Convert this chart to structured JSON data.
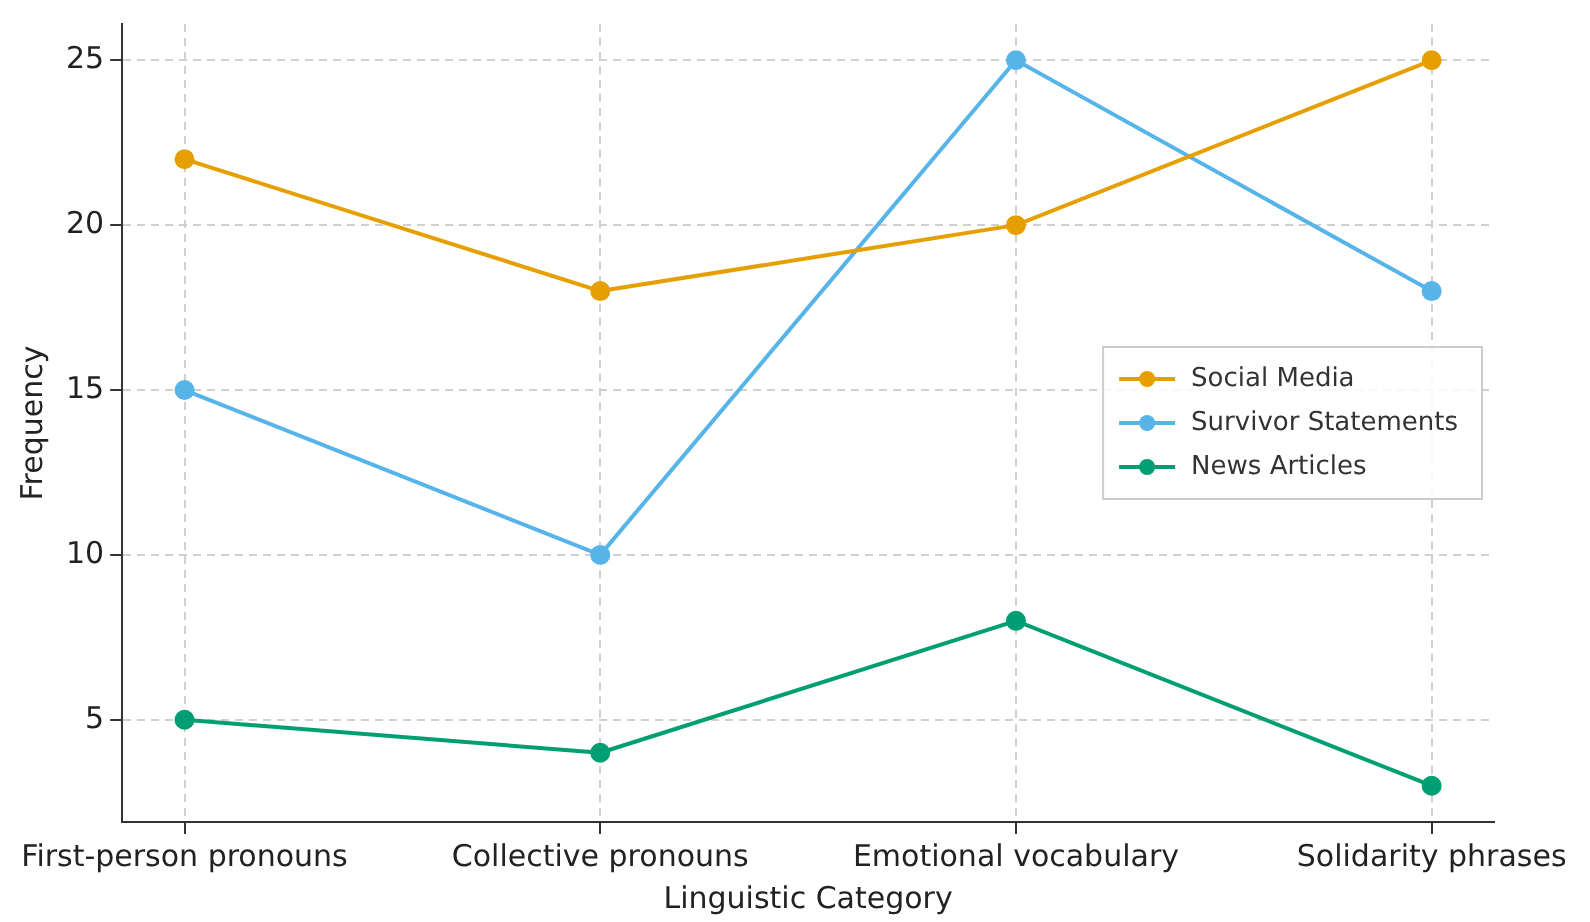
{
  "chart_data": {
    "type": "line",
    "xlabel": "Linguistic Category",
    "ylabel": "Frequency",
    "categories": [
      "First-person pronouns",
      "Collective pronouns",
      "Emotional vocabulary",
      "Solidarity phrases"
    ],
    "series": [
      {
        "name": "Social Media",
        "color": "#e69f00",
        "values": [
          22,
          18,
          20,
          25
        ]
      },
      {
        "name": "Survivor Statements",
        "color": "#56b4e9",
        "values": [
          15,
          10,
          25,
          18
        ]
      },
      {
        "name": "News Articles",
        "color": "#009e73",
        "values": [
          5,
          4,
          8,
          3
        ]
      }
    ],
    "ylim": [
      1.9,
      26.1
    ],
    "yticks": [
      5,
      10,
      15,
      20,
      25
    ],
    "grid": true,
    "legend": "center right",
    "marker": "circle",
    "line_style": "solid"
  }
}
